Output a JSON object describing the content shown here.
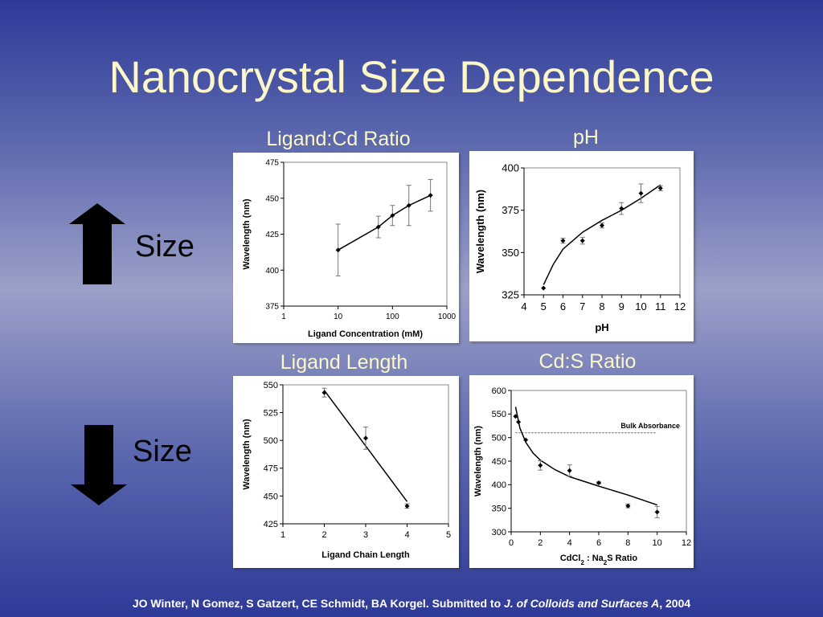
{
  "slide": {
    "title": "Nanocrystal Size Dependence",
    "size_up_label": "Size",
    "size_down_label": "Size",
    "citation_authors": "JO Winter, N Gomez, S Gatzert, CE Schmidt, BA Korgel. Submitted to ",
    "citation_journal": "J. of Colloids and Surfaces A",
    "citation_year": ", 2004"
  },
  "colors": {
    "title": "#fbf7c8",
    "background_top": "#2e3a97",
    "background_mid": "#9ba0c8"
  },
  "chart_data": [
    {
      "id": "ligand_ratio",
      "type": "line",
      "panel_title": "Ligand:Cd Ratio",
      "xlabel": "Ligand Concentration (mM)",
      "ylabel": "Wavelength (nm)",
      "xscale": "log",
      "xlim": [
        1,
        1000
      ],
      "ylim": [
        375,
        475
      ],
      "xticks": [
        1,
        10,
        100,
        1000
      ],
      "yticks": [
        375,
        400,
        425,
        450,
        475
      ],
      "points": [
        {
          "x": 10,
          "y": 414,
          "err": 18
        },
        {
          "x": 55,
          "y": 430,
          "err": 7.5
        },
        {
          "x": 100,
          "y": 438,
          "err": 7
        },
        {
          "x": 200,
          "y": 445,
          "err": 14
        },
        {
          "x": 500,
          "y": 452,
          "err": 11
        }
      ],
      "line": [
        {
          "x": 10,
          "y": 414
        },
        {
          "x": 55,
          "y": 430
        },
        {
          "x": 100,
          "y": 438
        },
        {
          "x": 200,
          "y": 445
        },
        {
          "x": 500,
          "y": 452
        }
      ]
    },
    {
      "id": "ph",
      "type": "scatter",
      "panel_title": "pH",
      "xlabel": "pH",
      "ylabel": "Wavelength (nm)",
      "xscale": "linear",
      "xlim": [
        4,
        12
      ],
      "ylim": [
        325,
        400
      ],
      "xticks": [
        4,
        5,
        6,
        7,
        8,
        9,
        10,
        11,
        12
      ],
      "yticks": [
        325,
        350,
        375,
        400
      ],
      "points": [
        {
          "x": 5,
          "y": 329,
          "err": 0
        },
        {
          "x": 6,
          "y": 357,
          "err": 1.5
        },
        {
          "x": 7,
          "y": 357,
          "err": 2
        },
        {
          "x": 8,
          "y": 366,
          "err": 1.5
        },
        {
          "x": 9,
          "y": 376,
          "err": 3.5
        },
        {
          "x": 10,
          "y": 385,
          "err": 5.5
        },
        {
          "x": 11,
          "y": 388,
          "err": 1.5
        }
      ],
      "line": [
        {
          "x": 5,
          "y": 331
        },
        {
          "x": 5.5,
          "y": 343
        },
        {
          "x": 6,
          "y": 352
        },
        {
          "x": 7,
          "y": 362
        },
        {
          "x": 8,
          "y": 369
        },
        {
          "x": 9,
          "y": 375
        },
        {
          "x": 10,
          "y": 382
        },
        {
          "x": 11,
          "y": 390
        }
      ]
    },
    {
      "id": "ligand_length",
      "type": "line",
      "panel_title": "Ligand Length",
      "xlabel": "Ligand Chain Length",
      "ylabel": "Wavelength (nm)",
      "xscale": "linear",
      "xlim": [
        1,
        5
      ],
      "ylim": [
        425,
        550
      ],
      "xticks": [
        1,
        2,
        3,
        4,
        5
      ],
      "yticks": [
        425,
        450,
        475,
        500,
        525,
        550
      ],
      "points": [
        {
          "x": 2,
          "y": 543,
          "err": 4
        },
        {
          "x": 3,
          "y": 502,
          "err": 10
        },
        {
          "x": 4,
          "y": 441,
          "err": 2
        }
      ],
      "line": [
        {
          "x": 2,
          "y": 545
        },
        {
          "x": 4,
          "y": 445
        }
      ]
    },
    {
      "id": "cds_ratio",
      "type": "scatter",
      "panel_title": "Cd:S Ratio",
      "xlabel": "CdCl2 : Na2S Ratio",
      "ylabel": "Wavelength (nm)",
      "annotation": "Bulk Absorbance",
      "reference_y": 510,
      "xscale": "linear",
      "xlim": [
        0,
        12
      ],
      "ylim": [
        300,
        600
      ],
      "xticks": [
        0,
        2,
        4,
        6,
        8,
        10,
        12
      ],
      "yticks": [
        300,
        350,
        400,
        450,
        500,
        550,
        600
      ],
      "points": [
        {
          "x": 0.3,
          "y": 545,
          "err": 0
        },
        {
          "x": 0.5,
          "y": 533,
          "err": 0
        },
        {
          "x": 1,
          "y": 495,
          "err": 0
        },
        {
          "x": 2,
          "y": 441,
          "err": 10
        },
        {
          "x": 4,
          "y": 430,
          "err": 12
        },
        {
          "x": 6,
          "y": 404,
          "err": 2
        },
        {
          "x": 8,
          "y": 355,
          "err": 4
        },
        {
          "x": 10,
          "y": 342,
          "err": 12
        }
      ],
      "line": [
        {
          "x": 0.3,
          "y": 565
        },
        {
          "x": 0.6,
          "y": 520
        },
        {
          "x": 1,
          "y": 490
        },
        {
          "x": 1.5,
          "y": 467
        },
        {
          "x": 2,
          "y": 452
        },
        {
          "x": 3,
          "y": 432
        },
        {
          "x": 4,
          "y": 417
        },
        {
          "x": 6,
          "y": 397
        },
        {
          "x": 8,
          "y": 378
        },
        {
          "x": 10,
          "y": 357
        }
      ]
    }
  ]
}
